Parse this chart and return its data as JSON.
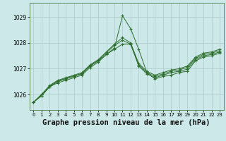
{
  "background_color": "#cce8e8",
  "grid_color": "#aacccc",
  "line_color": "#2d6e2d",
  "title": "Graphe pression niveau de la mer (hPa)",
  "title_fontsize": 7.5,
  "ylim": [
    1025.4,
    1029.55
  ],
  "xlim": [
    -0.5,
    23.5
  ],
  "yticks": [
    1026,
    1027,
    1028,
    1029
  ],
  "xticks": [
    0,
    1,
    2,
    3,
    4,
    5,
    6,
    7,
    8,
    9,
    10,
    11,
    12,
    13,
    14,
    15,
    16,
    17,
    18,
    19,
    20,
    21,
    22,
    23
  ],
  "series": [
    [
      1025.7,
      1025.95,
      1026.3,
      1026.45,
      1026.55,
      1026.65,
      1026.75,
      1027.05,
      1027.25,
      1027.55,
      1027.8,
      1029.05,
      1028.55,
      1027.75,
      1026.85,
      1026.6,
      1026.7,
      1026.75,
      1026.85,
      1026.9,
      1027.3,
      1027.45,
      1027.5,
      1027.6
    ],
    [
      1025.7,
      1025.95,
      1026.3,
      1026.5,
      1026.6,
      1026.7,
      1026.8,
      1027.1,
      1027.3,
      1027.55,
      1027.75,
      1027.95,
      1027.95,
      1027.1,
      1026.8,
      1026.65,
      1026.75,
      1026.85,
      1026.9,
      1026.98,
      1027.35,
      1027.5,
      1027.55,
      1027.65
    ],
    [
      1025.7,
      1026.0,
      1026.32,
      1026.52,
      1026.62,
      1026.72,
      1026.82,
      1027.12,
      1027.32,
      1027.62,
      1027.9,
      1028.1,
      1027.95,
      1027.15,
      1026.85,
      1026.7,
      1026.8,
      1026.9,
      1026.95,
      1027.05,
      1027.4,
      1027.55,
      1027.6,
      1027.7
    ],
    [
      1025.7,
      1026.0,
      1026.35,
      1026.55,
      1026.65,
      1026.75,
      1026.85,
      1027.15,
      1027.35,
      1027.65,
      1027.95,
      1028.2,
      1028.0,
      1027.2,
      1026.9,
      1026.75,
      1026.85,
      1026.95,
      1027.0,
      1027.1,
      1027.45,
      1027.6,
      1027.65,
      1027.75
    ]
  ]
}
